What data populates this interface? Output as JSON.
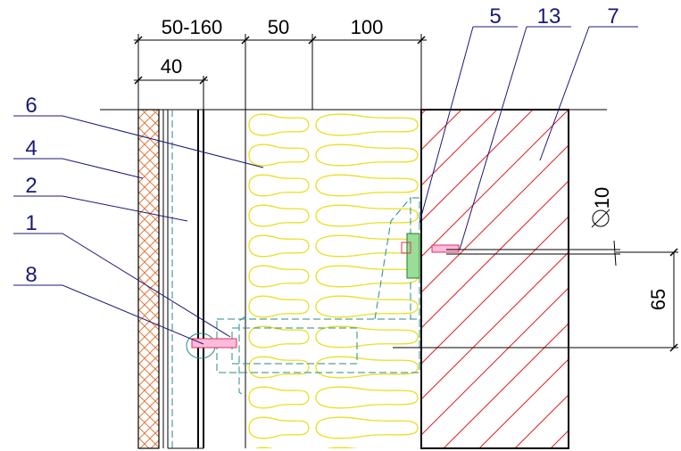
{
  "dimensions": {
    "overall": "50-160",
    "air_gap": "50",
    "insulation": "100",
    "bracket": "40",
    "anchor_spacing": "65",
    "anchor_diameter": "10"
  },
  "callouts": [
    {
      "label": "5"
    },
    {
      "label": "13"
    },
    {
      "label": "7"
    },
    {
      "label": "6"
    },
    {
      "label": "4"
    },
    {
      "label": "2"
    },
    {
      "label": "1"
    },
    {
      "label": "8"
    }
  ]
}
